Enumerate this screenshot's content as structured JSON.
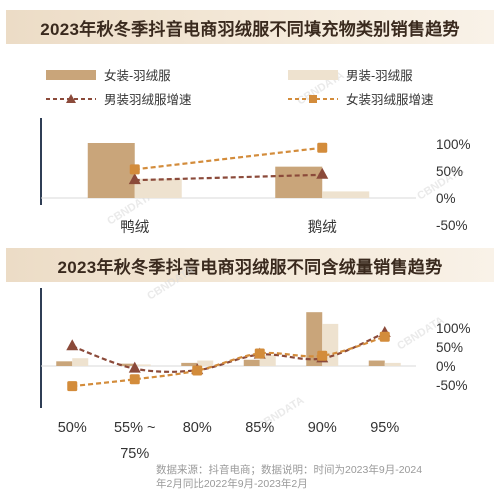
{
  "chart_data": [
    {
      "type": "bar",
      "title": "2023年秋冬季抖音电商羽绒服不同填充物类别销售趋势",
      "categories": [
        "鸭绒",
        "鹅绒"
      ],
      "series": [
        {
          "name": "女装-羽绒服",
          "kind": "bar",
          "axis": "left",
          "values": [
            1.0,
            0.57
          ]
        },
        {
          "name": "男装-羽绒服",
          "kind": "bar",
          "axis": "left",
          "values": [
            0.35,
            0.12
          ]
        },
        {
          "name": "男装羽绒服增速",
          "kind": "line",
          "axis": "right",
          "values": [
            33,
            43
          ]
        },
        {
          "name": "女装羽绒服增速",
          "kind": "line",
          "axis": "right",
          "values": [
            53,
            93
          ]
        }
      ],
      "y2_ticks": [
        "100%",
        "50%",
        "0%",
        "-50%"
      ],
      "y2lim": [
        -50,
        100
      ],
      "legend": "top",
      "grid": false
    },
    {
      "type": "bar",
      "title": "2023年秋冬季抖音电商羽绒服不同含绒量销售趋势",
      "categories": [
        "50%",
        "55% ~\n75%",
        "80%",
        "85%",
        "90%",
        "95%"
      ],
      "series": [
        {
          "name": "女装-羽绒服",
          "kind": "bar",
          "axis": "left",
          "values": [
            0.06,
            0.03,
            0.04,
            0.08,
            0.69,
            0.07
          ]
        },
        {
          "name": "男装-羽绒服",
          "kind": "bar",
          "axis": "left",
          "values": [
            0.1,
            0.02,
            0.07,
            0.14,
            0.54,
            0.04
          ]
        },
        {
          "name": "男装羽绒服增速",
          "kind": "line",
          "axis": "right",
          "values": [
            52,
            -7,
            -11,
            30,
            20,
            87
          ]
        },
        {
          "name": "女装羽绒服增速",
          "kind": "line",
          "axis": "right",
          "values": [
            -53,
            -35,
            -12,
            33,
            27,
            77
          ]
        }
      ],
      "y2_ticks": [
        "100%",
        "50%",
        "0%",
        "-50%"
      ],
      "y2lim": [
        -50,
        100
      ],
      "legend": "shared",
      "grid": false
    }
  ],
  "footer": {
    "line1": "数据来源：抖音电商；数据说明：时间为2023年9月-2024",
    "line2": "年2月同比2022年9月-2023年2月"
  },
  "watermark": "CBNDATA",
  "colors": {
    "women_bar": "#c9a57a",
    "men_bar": "#eee2cf",
    "men_line": "#8b4a3a",
    "women_line": "#d38c3b",
    "axis": "#2f3e55",
    "text": "#333333"
  }
}
